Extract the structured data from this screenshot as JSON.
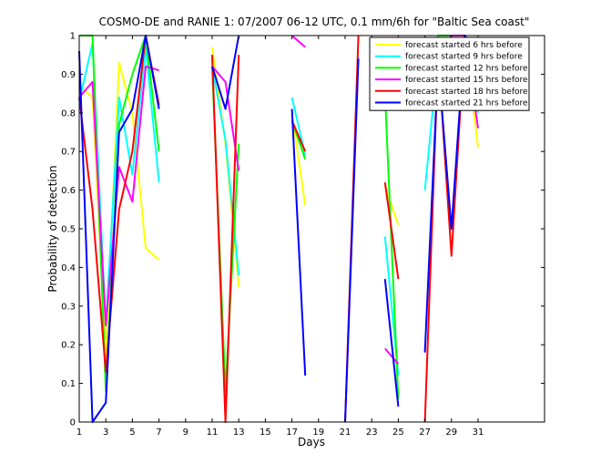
{
  "chart_data": {
    "type": "line",
    "title": "COSMO-DE and RANIE 1: 07/2007 06-12 UTC, 0.1 mm/6h for \"Baltic Sea coast\"",
    "xlabel": "Days",
    "ylabel": "Probability of detection",
    "xlim": [
      1,
      36
    ],
    "ylim": [
      0,
      1
    ],
    "xticks": [
      1,
      3,
      5,
      7,
      9,
      11,
      13,
      15,
      17,
      19,
      21,
      23,
      25,
      27,
      29,
      31
    ],
    "yticks": [
      0,
      0.1,
      0.2,
      0.3,
      0.4,
      0.5,
      0.6,
      0.7,
      0.8,
      0.9,
      1
    ],
    "xtick_labels": [
      "1",
      "3",
      "5",
      "7",
      "9",
      "11",
      "13",
      "15",
      "17",
      "19",
      "21",
      "23",
      "25",
      "27",
      "29",
      "31"
    ],
    "ytick_labels": [
      "0",
      "0.1",
      "0.2",
      "0.3",
      "0.4",
      "0.5",
      "0.6",
      "0.7",
      "0.8",
      "0.9",
      "1"
    ],
    "grid": false,
    "legend_position": "top-right",
    "series": [
      {
        "name": "forecast started 6 hrs before",
        "color": "#ffff00",
        "segments": [
          [
            [
              1,
              0.87
            ],
            [
              2,
              0.84
            ],
            [
              3,
              0.17
            ],
            [
              4,
              0.93
            ],
            [
              5,
              0.8
            ],
            [
              6,
              0.45
            ],
            [
              7,
              0.42
            ]
          ],
          [
            [
              11,
              0.97
            ],
            [
              12,
              0.72
            ],
            [
              13,
              0.35
            ]
          ],
          [
            [
              17,
              0.8
            ],
            [
              18,
              0.56
            ]
          ],
          [
            [
              24,
              0.61
            ],
            [
              25,
              0.51
            ]
          ],
          [
            [
              27,
              0.98
            ],
            [
              28,
              0.92
            ],
            [
              29,
              1.0
            ],
            [
              30,
              1.0
            ],
            [
              31,
              0.71
            ]
          ]
        ]
      },
      {
        "name": "forecast started 9 hrs before",
        "color": "#00ffff",
        "segments": [
          [
            [
              1,
              0.83
            ],
            [
              2,
              0.98
            ],
            [
              3,
              0.25
            ],
            [
              4,
              0.84
            ],
            [
              5,
              0.64
            ],
            [
              6,
              0.97
            ],
            [
              7,
              0.62
            ]
          ],
          [
            [
              11,
              0.92
            ],
            [
              12,
              0.73
            ],
            [
              13,
              0.38
            ]
          ],
          [
            [
              17,
              0.84
            ],
            [
              18,
              0.69
            ]
          ],
          [
            [
              24,
              0.48
            ],
            [
              25,
              0.12
            ]
          ],
          [
            [
              27,
              0.6
            ],
            [
              28,
              0.95
            ],
            [
              29,
              0.99
            ],
            [
              30,
              0.98
            ],
            [
              31,
              0.8
            ]
          ]
        ]
      },
      {
        "name": "forecast started 12 hrs before",
        "color": "#00ff00",
        "segments": [
          [
            [
              1,
              1.0
            ],
            [
              2,
              1.0
            ],
            [
              3,
              0.08
            ],
            [
              4,
              0.77
            ],
            [
              5,
              0.9
            ],
            [
              6,
              1.0
            ],
            [
              7,
              0.7
            ]
          ],
          [
            [
              11,
              0.92
            ],
            [
              12,
              0.08
            ],
            [
              13,
              0.72
            ]
          ],
          [
            [
              17,
              0.78
            ],
            [
              18,
              0.68
            ]
          ],
          [
            [
              24,
              0.85
            ],
            [
              25,
              0.06
            ]
          ],
          [
            [
              27,
              0.83
            ],
            [
              28,
              1.0
            ],
            [
              29,
              1.0
            ],
            [
              30,
              1.0
            ],
            [
              31,
              0.87
            ]
          ]
        ]
      },
      {
        "name": "forecast started 15 hrs before",
        "color": "#ff00ff",
        "segments": [
          [
            [
              1,
              0.84
            ],
            [
              2,
              0.88
            ],
            [
              3,
              0.25
            ],
            [
              4,
              0.66
            ],
            [
              5,
              0.57
            ],
            [
              6,
              0.92
            ],
            [
              7,
              0.91
            ]
          ],
          [
            [
              11,
              0.92
            ],
            [
              12,
              0.88
            ],
            [
              13,
              0.65
            ]
          ],
          [
            [
              17,
              1.0
            ],
            [
              18,
              0.97
            ]
          ],
          [
            [
              24,
              0.19
            ],
            [
              25,
              0.15
            ]
          ],
          [
            [
              27,
              0.97
            ],
            [
              28,
              0.93
            ],
            [
              29,
              1.0
            ],
            [
              30,
              1.0
            ],
            [
              31,
              0.76
            ]
          ]
        ]
      },
      {
        "name": "forecast started 18 hrs before",
        "color": "#ff0000",
        "segments": [
          [
            [
              1,
              0.84
            ],
            [
              2,
              0.55
            ],
            [
              3,
              0.13
            ],
            [
              4,
              0.55
            ],
            [
              5,
              0.7
            ],
            [
              6,
              1.0
            ],
            [
              7,
              0.82
            ]
          ],
          [
            [
              11,
              0.95
            ],
            [
              12,
              0.0
            ],
            [
              13,
              0.95
            ]
          ],
          [
            [
              17,
              0.78
            ],
            [
              18,
              0.7
            ]
          ],
          [
            [
              21,
              0.0
            ],
            [
              22,
              1.0
            ]
          ],
          [
            [
              24,
              0.62
            ],
            [
              25,
              0.37
            ]
          ],
          [
            [
              27,
              0.0
            ],
            [
              28,
              0.95
            ],
            [
              29,
              0.43
            ],
            [
              30,
              1.0
            ],
            [
              31,
              0.91
            ]
          ]
        ]
      },
      {
        "name": "forecast started 21 hrs before",
        "color": "#0000ff",
        "segments": [
          [
            [
              1,
              0.96
            ],
            [
              2,
              0.0
            ],
            [
              3,
              0.05
            ],
            [
              4,
              0.75
            ],
            [
              5,
              0.81
            ],
            [
              6,
              1.0
            ],
            [
              7,
              0.81
            ]
          ],
          [
            [
              11,
              0.92
            ],
            [
              12,
              0.81
            ],
            [
              13,
              1.0
            ]
          ],
          [
            [
              17,
              0.81
            ],
            [
              18,
              0.12
            ]
          ],
          [
            [
              21,
              0.0
            ],
            [
              22,
              0.94
            ]
          ],
          [
            [
              24,
              0.37
            ],
            [
              25,
              0.04
            ]
          ],
          [
            [
              27,
              0.18
            ],
            [
              28,
              0.93
            ],
            [
              29,
              0.5
            ],
            [
              30,
              1.0
            ],
            [
              31,
              0.95
            ]
          ]
        ]
      }
    ]
  }
}
